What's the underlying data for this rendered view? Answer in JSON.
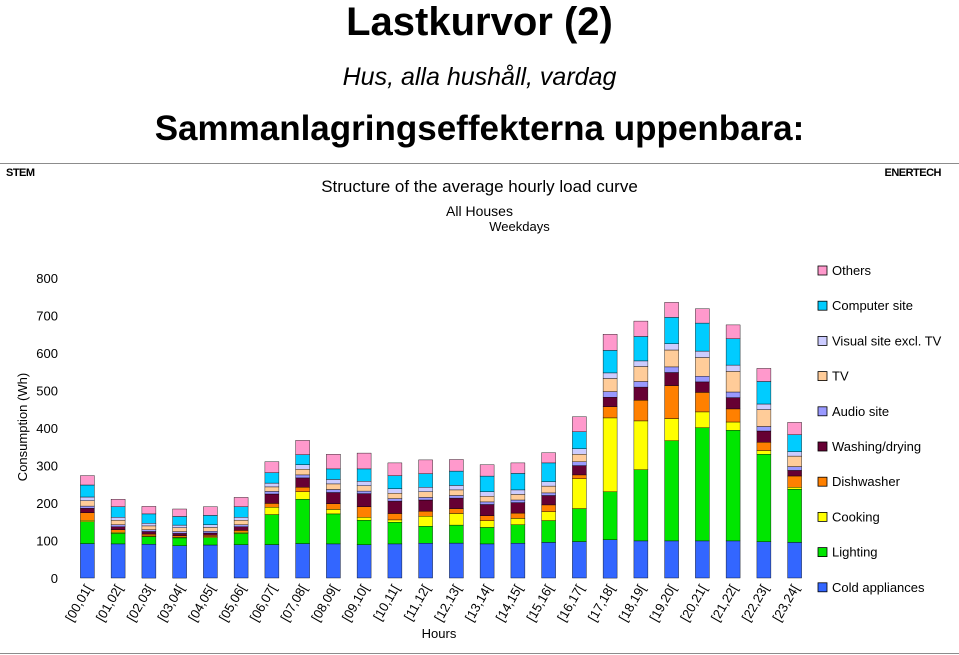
{
  "header": {
    "title": "Lastkurvor (2)",
    "subtitle": "Hus, alla hushåll, vardag",
    "headline": "Sammanlagringseffekterna uppenbara:",
    "left_label": "STEM",
    "right_label": "ENERTECH"
  },
  "chart_data": {
    "type": "bar",
    "stacked": true,
    "title": "Structure of the average hourly load curve",
    "subtitle": [
      "All Houses",
      "Weekdays"
    ],
    "xlabel": "Hours",
    "ylabel": "Consumption (Wh)",
    "ylim": [
      0,
      800
    ],
    "yticks": [
      0,
      100,
      200,
      300,
      400,
      500,
      600,
      700,
      800
    ],
    "grid": false,
    "legend_position": "right",
    "categories": [
      "[00,01[",
      "[01,02[",
      "[02,03[",
      "[03,04[",
      "[04,05[",
      "[05,06[",
      "[06,07[",
      "[07,08[",
      "[08,09[",
      "[09,10[",
      "[10,11[",
      "[11,12[",
      "[12,13[",
      "[13,14[",
      "[14,15[",
      "[15,16[",
      "[16,17[",
      "[17,18[",
      "[18,19[",
      "[19,20[",
      "[20,21[",
      "[21,22[",
      "[22,23[",
      "[23,24["
    ],
    "series": [
      {
        "name": "Cold appliances",
        "color": "#3366ff",
        "values": [
          92,
          91,
          90,
          86,
          88,
          89,
          89,
          92,
          91,
          89,
          91,
          93,
          93,
          91,
          93,
          95,
          97,
          102,
          99,
          99,
          99,
          99,
          97,
          95
        ]
      },
      {
        "name": "Lighting",
        "color": "#00e600",
        "values": [
          58,
          28,
          20,
          21,
          20,
          30,
          80,
          118,
          80,
          65,
          58,
          45,
          48,
          44,
          49,
          58,
          88,
          128,
          190,
          267,
          302,
          295,
          233,
          142
        ]
      },
      {
        "name": "Cooking",
        "color": "#ffff00",
        "values": [
          4,
          3,
          2,
          2,
          2,
          3,
          20,
          20,
          12,
          8,
          6,
          27,
          31,
          18,
          17,
          24,
          80,
          197,
          130,
          59,
          42,
          22,
          10,
          5
        ]
      },
      {
        "name": "Dishwasher",
        "color": "#ff8000",
        "values": [
          20,
          7,
          5,
          4,
          4,
          5,
          10,
          12,
          15,
          28,
          17,
          13,
          13,
          13,
          14,
          18,
          10,
          30,
          55,
          88,
          52,
          35,
          22,
          30
        ]
      },
      {
        "name": "Washing/drying",
        "color": "#660033",
        "values": [
          12,
          8,
          7,
          6,
          6,
          10,
          25,
          25,
          30,
          35,
          33,
          30,
          28,
          30,
          28,
          25,
          25,
          25,
          35,
          35,
          28,
          30,
          30,
          15
        ]
      },
      {
        "name": "Audio site",
        "color": "#9999ff",
        "values": [
          6,
          5,
          5,
          5,
          5,
          5,
          7,
          8,
          8,
          7,
          7,
          7,
          7,
          7,
          7,
          7,
          10,
          15,
          15,
          15,
          15,
          15,
          12,
          10
        ]
      },
      {
        "name": "TV",
        "color": "#ffcc99",
        "values": [
          14,
          12,
          10,
          10,
          10,
          12,
          12,
          15,
          15,
          14,
          14,
          15,
          15,
          15,
          15,
          18,
          20,
          35,
          40,
          45,
          50,
          55,
          45,
          28
        ]
      },
      {
        "name": "Visual site excl. TV",
        "color": "#ccccff",
        "values": [
          10,
          8,
          7,
          7,
          7,
          8,
          10,
          12,
          12,
          12,
          12,
          12,
          12,
          12,
          12,
          12,
          15,
          15,
          15,
          17,
          17,
          17,
          15,
          12
        ]
      },
      {
        "name": "Computer site",
        "color": "#00ccff",
        "values": [
          32,
          28,
          25,
          23,
          25,
          28,
          28,
          27,
          28,
          33,
          35,
          36,
          38,
          42,
          44,
          50,
          45,
          60,
          65,
          70,
          75,
          70,
          60,
          45
        ]
      },
      {
        "name": "Others",
        "color": "#ff99cc",
        "values": [
          25,
          20,
          20,
          20,
          23,
          25,
          29,
          38,
          39,
          42,
          34,
          37,
          31,
          30,
          28,
          27,
          40,
          43,
          41,
          40,
          38,
          37,
          35,
          33
        ]
      }
    ]
  }
}
